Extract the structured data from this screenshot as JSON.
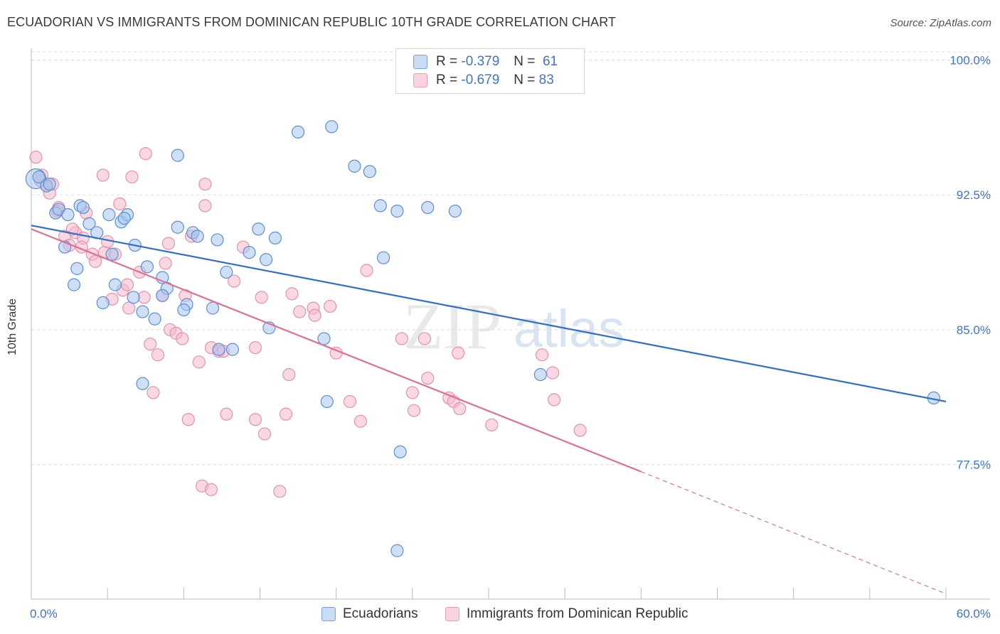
{
  "title": "ECUADORIAN VS IMMIGRANTS FROM DOMINICAN REPUBLIC 10TH GRADE CORRELATION CHART",
  "source": "Source: ZipAtlas.com",
  "legend": {
    "rows": [
      {
        "r_label": "R =",
        "r_value": "-0.379",
        "n_label": "N =",
        "n_value": "61"
      },
      {
        "r_label": "R =",
        "r_value": "-0.679",
        "n_label": "N =",
        "n_value": "83"
      }
    ]
  },
  "bottom_legend": [
    "Ecuadorians",
    "Immigrants from Dominican Republic"
  ],
  "watermark": {
    "zip": "ZIP",
    "atlas": "atlas"
  },
  "colors": {
    "blue_fill": "#a8c4ee",
    "blue_stroke": "#5b8fd6",
    "blue_line": "#2f6fcc",
    "pink_fill": "#f5b8cb",
    "pink_stroke": "#e692ad",
    "pink_line": "#e06f98",
    "tick_label": "#3f74d0",
    "grid": "#dcdcdc"
  },
  "chart_data": {
    "type": "scatter",
    "title": "ECUADORIAN VS IMMIGRANTS FROM DOMINICAN REPUBLIC 10TH GRADE CORRELATION CHART",
    "xlabel": "",
    "ylabel": "10th Grade",
    "xlim": [
      0,
      60
    ],
    "ylim": [
      70.0,
      100.5
    ],
    "x_tick_labels": [
      "0.0%",
      "60.0%"
    ],
    "y_ticks": [
      77.5,
      85.0,
      92.5,
      100.0
    ],
    "y_tick_labels": [
      "77.5%",
      "85.0%",
      "92.5%",
      "100.0%"
    ],
    "grid": true,
    "legend_position": "top-center",
    "series": [
      {
        "name": "Ecuadorians",
        "r": -0.379,
        "n": 61,
        "trend": {
          "x": [
            0,
            60
          ],
          "y": [
            90.8,
            81.0
          ]
        },
        "points": [
          [
            0.3,
            93.4
          ],
          [
            0.5,
            93.5
          ],
          [
            1.0,
            93.0
          ],
          [
            1.2,
            93.1
          ],
          [
            1.6,
            91.5
          ],
          [
            1.8,
            91.7
          ],
          [
            2.4,
            91.4
          ],
          [
            2.2,
            89.6
          ],
          [
            3.2,
            91.9
          ],
          [
            3.4,
            91.8
          ],
          [
            3.0,
            88.4
          ],
          [
            2.8,
            87.5
          ],
          [
            3.8,
            90.9
          ],
          [
            4.3,
            90.4
          ],
          [
            5.1,
            91.4
          ],
          [
            5.3,
            89.2
          ],
          [
            5.5,
            87.5
          ],
          [
            4.7,
            86.5
          ],
          [
            5.9,
            91.0
          ],
          [
            6.3,
            91.4
          ],
          [
            6.1,
            91.2
          ],
          [
            6.8,
            89.7
          ],
          [
            6.7,
            86.8
          ],
          [
            7.6,
            88.5
          ],
          [
            7.3,
            86.0
          ],
          [
            8.1,
            85.6
          ],
          [
            8.6,
            87.9
          ],
          [
            8.9,
            87.3
          ],
          [
            8.6,
            86.9
          ],
          [
            7.3,
            82.0
          ],
          [
            9.6,
            90.7
          ],
          [
            10.2,
            86.4
          ],
          [
            10.0,
            86.1
          ],
          [
            10.6,
            90.4
          ],
          [
            10.9,
            90.2
          ],
          [
            12.2,
            90.0
          ],
          [
            12.8,
            88.2
          ],
          [
            11.9,
            86.2
          ],
          [
            12.3,
            83.9
          ],
          [
            13.2,
            83.9
          ],
          [
            14.9,
            90.6
          ],
          [
            14.3,
            89.3
          ],
          [
            15.4,
            88.9
          ],
          [
            16.0,
            90.1
          ],
          [
            15.6,
            85.1
          ],
          [
            9.6,
            94.7
          ],
          [
            17.5,
            96.0
          ],
          [
            19.7,
            96.3
          ],
          [
            19.2,
            84.5
          ],
          [
            19.4,
            81.0
          ],
          [
            21.2,
            94.1
          ],
          [
            22.9,
            91.9
          ],
          [
            23.1,
            89.0
          ],
          [
            24.0,
            91.6
          ],
          [
            22.2,
            93.8
          ],
          [
            26.0,
            91.8
          ],
          [
            27.8,
            91.6
          ],
          [
            24.2,
            78.2
          ],
          [
            33.4,
            82.5
          ],
          [
            24.0,
            72.7
          ],
          [
            59.2,
            81.2
          ]
        ]
      },
      {
        "name": "Immigrants from Dominican Republic",
        "r": -0.679,
        "n": 83,
        "trend": {
          "x": [
            0,
            40
          ],
          "y": [
            90.6,
            77.1
          ]
        },
        "trend_dashed": {
          "x": [
            40,
            60
          ],
          "y": [
            77.1,
            70.3
          ]
        },
        "points": [
          [
            0.3,
            94.6
          ],
          [
            0.6,
            93.3
          ],
          [
            0.7,
            93.6
          ],
          [
            1.0,
            93.1
          ],
          [
            1.2,
            92.6
          ],
          [
            1.4,
            93.1
          ],
          [
            1.8,
            91.8
          ],
          [
            1.7,
            91.6
          ],
          [
            2.2,
            90.2
          ],
          [
            2.5,
            89.7
          ],
          [
            2.9,
            90.4
          ],
          [
            3.4,
            90.1
          ],
          [
            3.6,
            91.5
          ],
          [
            2.7,
            90.6
          ],
          [
            3.3,
            89.6
          ],
          [
            4.0,
            89.2
          ],
          [
            4.2,
            88.8
          ],
          [
            4.8,
            89.3
          ],
          [
            5.0,
            89.9
          ],
          [
            5.5,
            89.2
          ],
          [
            4.7,
            93.6
          ],
          [
            5.3,
            86.7
          ],
          [
            5.8,
            92.0
          ],
          [
            6.0,
            87.2
          ],
          [
            6.3,
            87.5
          ],
          [
            6.4,
            86.2
          ],
          [
            6.6,
            93.5
          ],
          [
            7.1,
            88.2
          ],
          [
            7.4,
            86.8
          ],
          [
            7.5,
            94.8
          ],
          [
            7.8,
            84.2
          ],
          [
            8.3,
            83.6
          ],
          [
            8.0,
            81.5
          ],
          [
            8.6,
            86.9
          ],
          [
            8.8,
            88.7
          ],
          [
            9.0,
            89.8
          ],
          [
            9.1,
            85.0
          ],
          [
            9.5,
            84.8
          ],
          [
            9.9,
            84.5
          ],
          [
            10.1,
            86.9
          ],
          [
            10.3,
            80.0
          ],
          [
            10.5,
            90.2
          ],
          [
            11.0,
            83.2
          ],
          [
            11.4,
            93.1
          ],
          [
            11.4,
            91.9
          ],
          [
            11.8,
            84.0
          ],
          [
            12.3,
            83.8
          ],
          [
            12.6,
            83.8
          ],
          [
            12.8,
            80.3
          ],
          [
            13.3,
            87.7
          ],
          [
            13.9,
            89.6
          ],
          [
            14.7,
            84.0
          ],
          [
            15.1,
            86.8
          ],
          [
            14.7,
            80.0
          ],
          [
            15.3,
            79.2
          ],
          [
            11.2,
            76.3
          ],
          [
            11.8,
            76.1
          ],
          [
            16.3,
            76.0
          ],
          [
            16.7,
            80.3
          ],
          [
            16.9,
            82.5
          ],
          [
            17.1,
            87.0
          ],
          [
            17.6,
            86.0
          ],
          [
            18.5,
            86.2
          ],
          [
            18.6,
            85.8
          ],
          [
            19.6,
            86.3
          ],
          [
            20.0,
            83.7
          ],
          [
            20.9,
            81.0
          ],
          [
            21.6,
            79.9
          ],
          [
            22.0,
            88.3
          ],
          [
            24.3,
            84.5
          ],
          [
            25.0,
            81.5
          ],
          [
            25.1,
            80.5
          ],
          [
            25.8,
            84.5
          ],
          [
            26.0,
            82.3
          ],
          [
            27.4,
            81.2
          ],
          [
            27.7,
            81.0
          ],
          [
            28.1,
            80.6
          ],
          [
            28.0,
            83.7
          ],
          [
            30.2,
            79.7
          ],
          [
            33.5,
            83.6
          ],
          [
            34.2,
            82.6
          ],
          [
            34.3,
            81.1
          ],
          [
            36.0,
            79.4
          ]
        ]
      }
    ]
  }
}
